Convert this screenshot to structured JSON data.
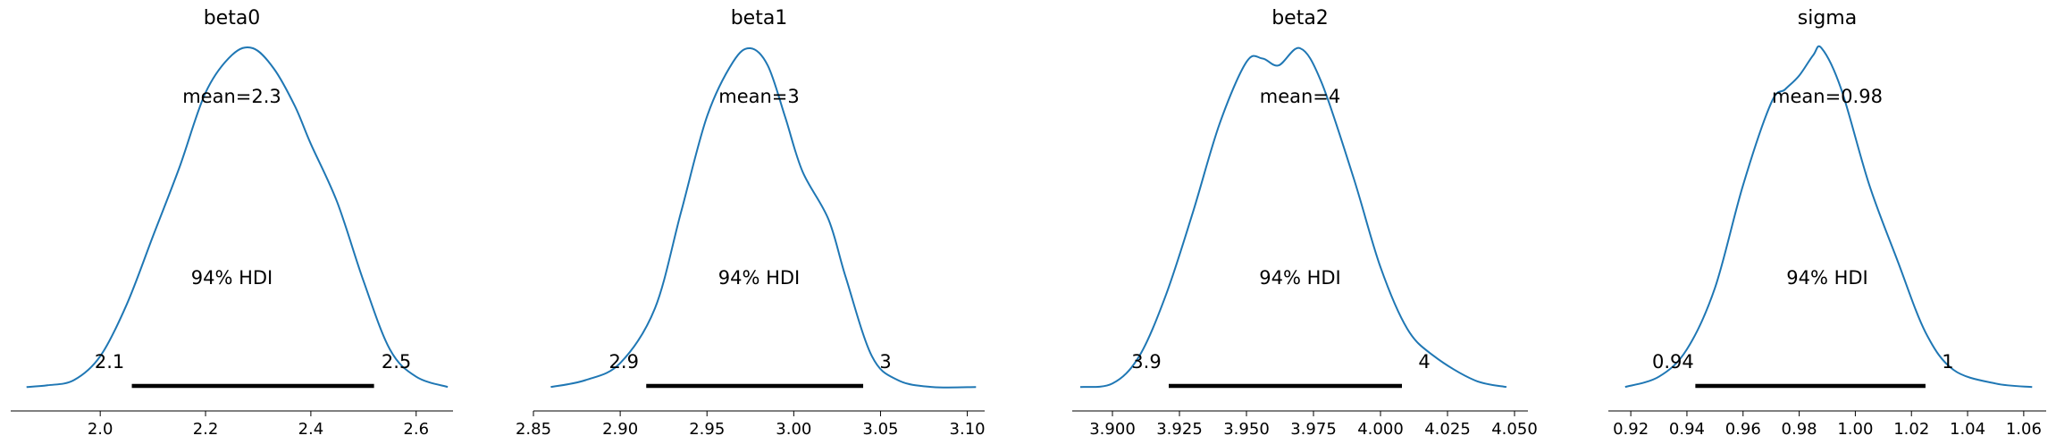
{
  "chart_data": [
    {
      "type": "line",
      "title": "beta0",
      "mean_label": "mean=2.3",
      "hdi_label": "94% HDI",
      "hdi": [
        2.06,
        2.52
      ],
      "hdi_text": [
        "2.1",
        "2.5"
      ],
      "xlim": [
        1.83,
        2.67
      ],
      "xticks": [
        2.0,
        2.2,
        2.4,
        2.6
      ],
      "xtick_labels": [
        "2.0",
        "2.2",
        "2.4",
        "2.6"
      ],
      "x": [
        1.86,
        1.9,
        1.95,
        2.0,
        2.05,
        2.1,
        2.15,
        2.2,
        2.25,
        2.29,
        2.33,
        2.37,
        2.4,
        2.45,
        2.5,
        2.55,
        2.6,
        2.66
      ],
      "density": [
        0.01,
        0.015,
        0.03,
        0.1,
        0.25,
        0.45,
        0.65,
        0.87,
        0.98,
        1.0,
        0.94,
        0.83,
        0.72,
        0.55,
        0.32,
        0.12,
        0.04,
        0.01
      ],
      "line_color": "#1f77b4"
    },
    {
      "type": "line",
      "title": "beta1",
      "mean_label": "mean=3",
      "hdi_label": "94% HDI",
      "hdi": [
        2.915,
        3.04
      ],
      "hdi_text": [
        "2.9",
        "3"
      ],
      "xlim": [
        2.85,
        3.11
      ],
      "xticks": [
        2.85,
        2.9,
        2.95,
        3.0,
        3.05,
        3.1
      ],
      "xtick_labels": [
        "2.85",
        "2.90",
        "2.95",
        "3.00",
        "3.05",
        "3.10"
      ],
      "x": [
        2.86,
        2.88,
        2.9,
        2.92,
        2.935,
        2.95,
        2.965,
        2.975,
        2.985,
        2.995,
        3.005,
        3.02,
        3.03,
        3.045,
        3.06,
        3.08,
        3.105
      ],
      "density": [
        0.01,
        0.03,
        0.08,
        0.24,
        0.52,
        0.8,
        0.96,
        1.0,
        0.95,
        0.8,
        0.64,
        0.5,
        0.33,
        0.1,
        0.03,
        0.01,
        0.01
      ],
      "line_color": "#1f77b4"
    },
    {
      "type": "line",
      "title": "beta2",
      "mean_label": "mean=4",
      "hdi_label": "94% HDI",
      "hdi": [
        3.921,
        4.008
      ],
      "hdi_text": [
        "3.9",
        "4"
      ],
      "xlim": [
        3.885,
        4.055
      ],
      "xticks": [
        3.9,
        3.925,
        3.95,
        3.975,
        4.0,
        4.025,
        4.05
      ],
      "xtick_labels": [
        "3.900",
        "3.925",
        "3.950",
        "3.975",
        "4.000",
        "4.025",
        "4.050"
      ],
      "x": [
        3.888,
        3.9,
        3.91,
        3.92,
        3.93,
        3.94,
        3.95,
        3.956,
        3.962,
        3.97,
        3.978,
        3.99,
        4.0,
        4.01,
        4.02,
        4.035,
        4.047
      ],
      "density": [
        0.01,
        0.02,
        0.1,
        0.28,
        0.52,
        0.78,
        0.96,
        0.97,
        0.95,
        1.0,
        0.9,
        0.62,
        0.36,
        0.18,
        0.1,
        0.03,
        0.01
      ],
      "line_color": "#1f77b4"
    },
    {
      "type": "line",
      "title": "sigma",
      "mean_label": "mean=0.98",
      "hdi_label": "94% HDI",
      "hdi": [
        0.943,
        1.025
      ],
      "hdi_text": [
        "0.94",
        "1"
      ],
      "xlim": [
        0.912,
        1.068
      ],
      "xticks": [
        0.92,
        0.94,
        0.96,
        0.98,
        1.0,
        1.02,
        1.04,
        1.06
      ],
      "xtick_labels": [
        "0.92",
        "0.94",
        "0.96",
        "0.98",
        "1.00",
        "1.02",
        "1.04",
        "1.06"
      ],
      "x": [
        0.918,
        0.93,
        0.94,
        0.95,
        0.96,
        0.97,
        0.975,
        0.98,
        0.985,
        0.988,
        0.995,
        1.005,
        1.015,
        1.025,
        1.035,
        1.05,
        1.063
      ],
      "density": [
        0.01,
        0.04,
        0.12,
        0.3,
        0.6,
        0.84,
        0.88,
        0.92,
        0.98,
        1.0,
        0.88,
        0.6,
        0.38,
        0.17,
        0.06,
        0.02,
        0.01
      ],
      "line_color": "#1f77b4"
    }
  ]
}
